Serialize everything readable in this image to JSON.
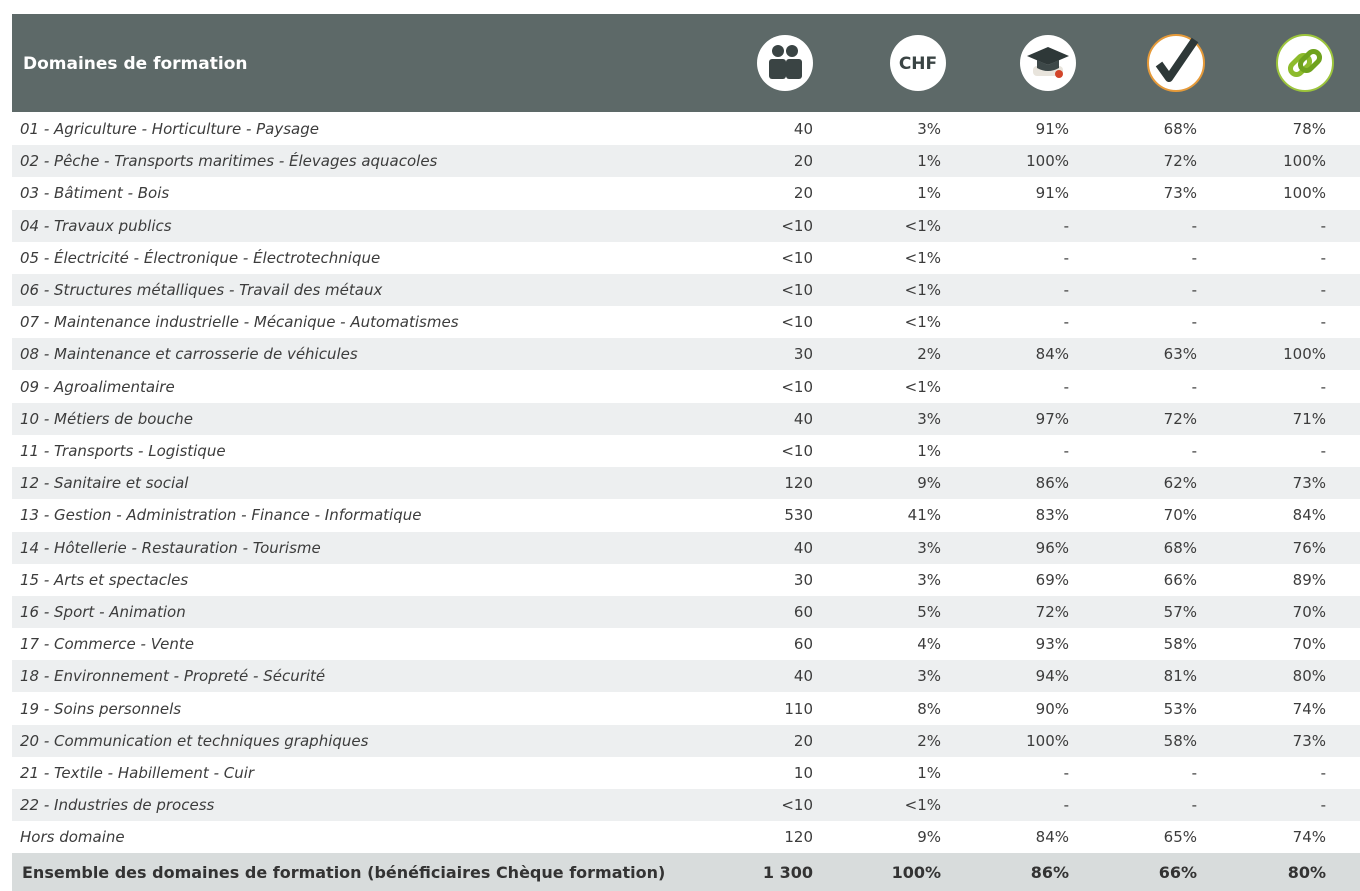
{
  "header": {
    "title": "Domaines de formation",
    "icon_text": "CHF"
  },
  "table": {
    "rows": [
      [
        "01 - Agriculture - Horticulture - Paysage",
        "40",
        "3%",
        "91%",
        "68%",
        "78%"
      ],
      [
        "02 - Pêche - Transports maritimes - Élevages aquacoles",
        "20",
        "1%",
        "100%",
        "72%",
        "100%"
      ],
      [
        "03 - Bâtiment - Bois",
        "20",
        "1%",
        "91%",
        "73%",
        "100%"
      ],
      [
        "04 - Travaux publics",
        "<10",
        "<1%",
        "-",
        "-",
        "-"
      ],
      [
        "05 - Électricité - Électronique - Électrotechnique",
        "<10",
        "<1%",
        "-",
        "-",
        "-"
      ],
      [
        "06 - Structures métalliques - Travail des métaux",
        "<10",
        "<1%",
        "-",
        "-",
        "-"
      ],
      [
        "07 - Maintenance industrielle - Mécanique - Automatismes",
        "<10",
        "<1%",
        "-",
        "-",
        "-"
      ],
      [
        "08 - Maintenance et carrosserie de véhicules",
        "30",
        "2%",
        "84%",
        "63%",
        "100%"
      ],
      [
        "09 - Agroalimentaire",
        "<10",
        "<1%",
        "-",
        "-",
        "-"
      ],
      [
        "10 - Métiers de bouche",
        "40",
        "3%",
        "97%",
        "72%",
        "71%"
      ],
      [
        "11 - Transports - Logistique",
        "<10",
        "1%",
        "-",
        "-",
        "-"
      ],
      [
        "12 - Sanitaire et social",
        "120",
        "9%",
        "86%",
        "62%",
        "73%"
      ],
      [
        "13 - Gestion - Administration - Finance - Informatique",
        "530",
        "41%",
        "83%",
        "70%",
        "84%"
      ],
      [
        "14 - Hôtellerie - Restauration - Tourisme",
        "40",
        "3%",
        "96%",
        "68%",
        "76%"
      ],
      [
        "15 - Arts et spectacles",
        "30",
        "3%",
        "69%",
        "66%",
        "89%"
      ],
      [
        "16 - Sport - Animation",
        "60",
        "5%",
        "72%",
        "57%",
        "70%"
      ],
      [
        "17 - Commerce - Vente",
        "60",
        "4%",
        "93%",
        "58%",
        "70%"
      ],
      [
        "18 - Environnement - Propreté - Sécurité",
        "40",
        "3%",
        "94%",
        "81%",
        "80%"
      ],
      [
        "19 - Soins personnels",
        "110",
        "8%",
        "90%",
        "53%",
        "74%"
      ],
      [
        "20 - Communication et techniques graphiques",
        "20",
        "2%",
        "100%",
        "58%",
        "73%"
      ],
      [
        "21 - Textile - Habillement - Cuir",
        "10",
        "1%",
        "-",
        "-",
        "-"
      ],
      [
        "22 - Industries de process",
        "<10",
        "<1%",
        "-",
        "-",
        "-"
      ],
      [
        "Hors domaine",
        "120",
        "9%",
        "84%",
        "65%",
        "74%"
      ]
    ],
    "total": [
      "Ensemble des domaines de formation (bénéficiaires Chèque formation)",
      "1 300",
      "100%",
      "86%",
      "66%",
      "80%"
    ]
  }
}
